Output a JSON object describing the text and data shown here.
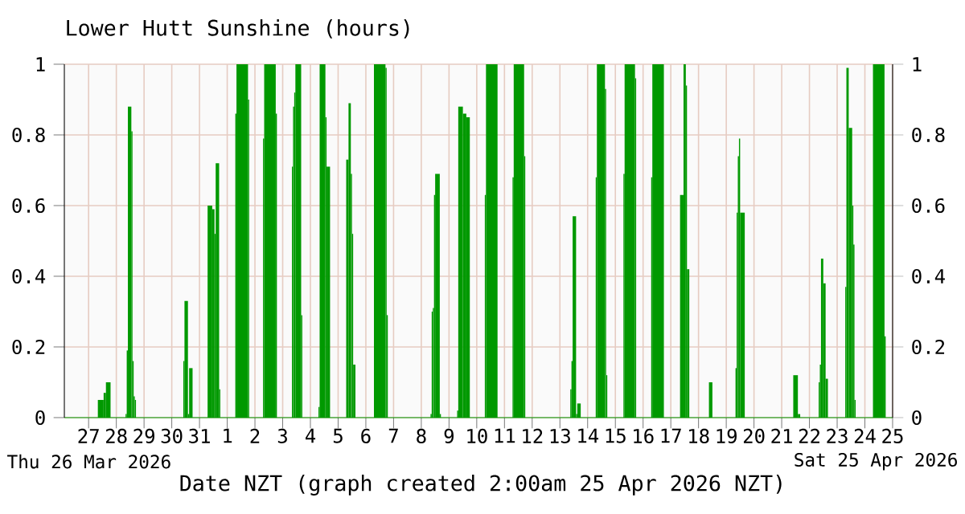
{
  "chart_data": {
    "type": "histogram",
    "title": "Lower Hutt Sunshine (hours)",
    "xlabel": "Date NZT (graph created 2:00am 25 Apr 2026 NZT)",
    "annotations": [
      "Thu 26 Mar 2026",
      "Sat 25 Apr 2026"
    ],
    "color": "#009900",
    "grid": true,
    "xlim": [
      "2026-03-26T03:00",
      "2026-04-25T00:00"
    ],
    "ylim": [
      0,
      1
    ],
    "yticks": [
      0,
      0.2,
      0.4,
      0.6,
      0.8,
      1
    ],
    "y2lim": [
      0,
      1
    ],
    "y2ticks": [
      0,
      0.2,
      0.4,
      0.6,
      0.8,
      1
    ],
    "xticks": [
      {
        "value": "2026-03-27",
        "label": "27"
      },
      {
        "value": "2026-03-28",
        "label": "28"
      },
      {
        "value": "2026-03-29",
        "label": "29"
      },
      {
        "value": "2026-03-30",
        "label": "30"
      },
      {
        "value": "2026-03-31",
        "label": "31"
      },
      {
        "value": "2026-04-01",
        "label": "1"
      },
      {
        "value": "2026-04-02",
        "label": "2"
      },
      {
        "value": "2026-04-03",
        "label": "3"
      },
      {
        "value": "2026-04-04",
        "label": "4"
      },
      {
        "value": "2026-04-05",
        "label": "5"
      },
      {
        "value": "2026-04-06",
        "label": "6"
      },
      {
        "value": "2026-04-07",
        "label": "7"
      },
      {
        "value": "2026-04-08",
        "label": "8"
      },
      {
        "value": "2026-04-09",
        "label": "9"
      },
      {
        "value": "2026-04-10",
        "label": "10"
      },
      {
        "value": "2026-04-11",
        "label": "11"
      },
      {
        "value": "2026-04-12",
        "label": "12"
      },
      {
        "value": "2026-04-13",
        "label": "13"
      },
      {
        "value": "2026-04-14",
        "label": "14"
      },
      {
        "value": "2026-04-15",
        "label": "15"
      },
      {
        "value": "2026-04-16",
        "label": "16"
      },
      {
        "value": "2026-04-17",
        "label": "17"
      },
      {
        "value": "2026-04-18",
        "label": "18"
      },
      {
        "value": "2026-04-19",
        "label": "19"
      },
      {
        "value": "2026-04-20",
        "label": "20"
      },
      {
        "value": "2026-04-21",
        "label": "21"
      },
      {
        "value": "2026-04-22",
        "label": "22"
      },
      {
        "value": "2026-04-23",
        "label": "23"
      },
      {
        "value": "2026-04-24",
        "label": "24"
      },
      {
        "value": "2026-04-25",
        "label": "25"
      }
    ],
    "bins": [
      "2026-03-27T08:00",
      "2026-03-27T13:00",
      "2026-03-27T15:00",
      "2026-03-27T19:00",
      "2026-03-28T08:00",
      "2026-03-28T09:00",
      "2026-03-28T10:00",
      "2026-03-28T13:00",
      "2026-03-28T14:00",
      "2026-03-28T15:00",
      "2026-03-28T16:00",
      "2026-03-28T17:00",
      "2026-03-30T10:00",
      "2026-03-30T11:00",
      "2026-03-30T14:00",
      "2026-03-30T15:00",
      "2026-03-30T18:00",
      "2026-03-31T07:00",
      "2026-03-31T11:00",
      "2026-03-31T13:00",
      "2026-03-31T14:00",
      "2026-03-31T17:00",
      "2026-03-31T18:00",
      "2026-04-01T07:00",
      "2026-04-01T08:00",
      "2026-04-01T18:00",
      "2026-04-01T19:00",
      "2026-04-02T07:00",
      "2026-04-02T08:00",
      "2026-04-02T18:00",
      "2026-04-02T19:00",
      "2026-04-03T08:00",
      "2026-04-03T09:00",
      "2026-04-03T10:00",
      "2026-04-03T11:00",
      "2026-04-03T16:00",
      "2026-04-03T17:00",
      "2026-04-04T07:00",
      "2026-04-04T08:00",
      "2026-04-04T13:00",
      "2026-04-04T14:00",
      "2026-04-04T17:00",
      "2026-04-05T07:00",
      "2026-04-05T09:00",
      "2026-04-05T11:00",
      "2026-04-05T12:00",
      "2026-04-05T13:00",
      "2026-04-05T15:00",
      "2026-04-06T07:00",
      "2026-04-06T17:00",
      "2026-04-06T18:00",
      "2026-04-06T19:00",
      "2026-04-08T08:00",
      "2026-04-08T09:00",
      "2026-04-08T10:00",
      "2026-04-08T11:00",
      "2026-04-08T12:00",
      "2026-04-08T16:00",
      "2026-04-08T17:00",
      "2026-04-09T07:00",
      "2026-04-09T08:00",
      "2026-04-09T12:00",
      "2026-04-09T15:00",
      "2026-04-09T18:00",
      "2026-04-10T07:00",
      "2026-04-10T08:00",
      "2026-04-10T18:00",
      "2026-04-11T07:00",
      "2026-04-11T08:00",
      "2026-04-11T17:00",
      "2026-04-11T18:00",
      "2026-04-13T09:00",
      "2026-04-13T10:00",
      "2026-04-13T11:00",
      "2026-04-13T14:00",
      "2026-04-13T15:00",
      "2026-04-13T18:00",
      "2026-04-14T07:00",
      "2026-04-14T08:00",
      "2026-04-14T15:00",
      "2026-04-14T16:00",
      "2026-04-14T17:00",
      "2026-04-15T07:00",
      "2026-04-15T08:00",
      "2026-04-15T17:00",
      "2026-04-15T18:00",
      "2026-04-16T07:00",
      "2026-04-16T08:00",
      "2026-04-16T18:00",
      "2026-04-17T08:00",
      "2026-04-17T11:00",
      "2026-04-17T13:00",
      "2026-04-17T14:00",
      "2026-04-17T16:00",
      "2026-04-18T09:00",
      "2026-04-18T12:00",
      "2026-04-19T08:00",
      "2026-04-19T09:00",
      "2026-04-19T10:00",
      "2026-04-19T11:00",
      "2026-04-19T12:00",
      "2026-04-19T16:00",
      "2026-04-21T10:00",
      "2026-04-21T14:00",
      "2026-04-21T16:00",
      "2026-04-22T08:00",
      "2026-04-22T09:00",
      "2026-04-22T10:00",
      "2026-04-22T12:00",
      "2026-04-22T14:00",
      "2026-04-22T16:00",
      "2026-04-23T07:00",
      "2026-04-23T08:00",
      "2026-04-23T10:00",
      "2026-04-23T13:00",
      "2026-04-23T14:00",
      "2026-04-23T15:00",
      "2026-04-23T16:00",
      "2026-04-24T07:00",
      "2026-04-24T17:00",
      "2026-04-24T18:00"
    ],
    "values": [
      0.05,
      0.07,
      0.1,
      0,
      0.01,
      0.19,
      0.88,
      0.81,
      0.16,
      0.06,
      0.05,
      0,
      0.16,
      0.33,
      0.01,
      0.14,
      0,
      0.6,
      0.59,
      0.52,
      0.72,
      0.08,
      0,
      0.86,
      1,
      0.9,
      0,
      0.79,
      1,
      0.86,
      0,
      0.71,
      0.88,
      0.92,
      1,
      0.29,
      0,
      0.03,
      1,
      0.85,
      0.71,
      0,
      0.73,
      0.89,
      0.69,
      0.52,
      0.15,
      0,
      1,
      0.99,
      0.29,
      0,
      0.01,
      0.3,
      0.31,
      0.63,
      0.69,
      0.01,
      0,
      0.02,
      0.88,
      0.86,
      0.85,
      0,
      0.63,
      1,
      0,
      0.68,
      1,
      0.74,
      0,
      0.08,
      0.16,
      0.57,
      0.01,
      0.04,
      0,
      0.68,
      1,
      0.93,
      0.12,
      0,
      0.69,
      1,
      0.96,
      0,
      0.68,
      1,
      0,
      0.63,
      1,
      0.94,
      0.42,
      0,
      0.1,
      0,
      0.14,
      0.58,
      0.74,
      0.79,
      0.58,
      0,
      0.12,
      0.01,
      0,
      0.1,
      0.15,
      0.45,
      0.38,
      0.11,
      0,
      0.37,
      0.99,
      0.82,
      0.6,
      0.49,
      0.05,
      0,
      1,
      0.23
    ]
  }
}
